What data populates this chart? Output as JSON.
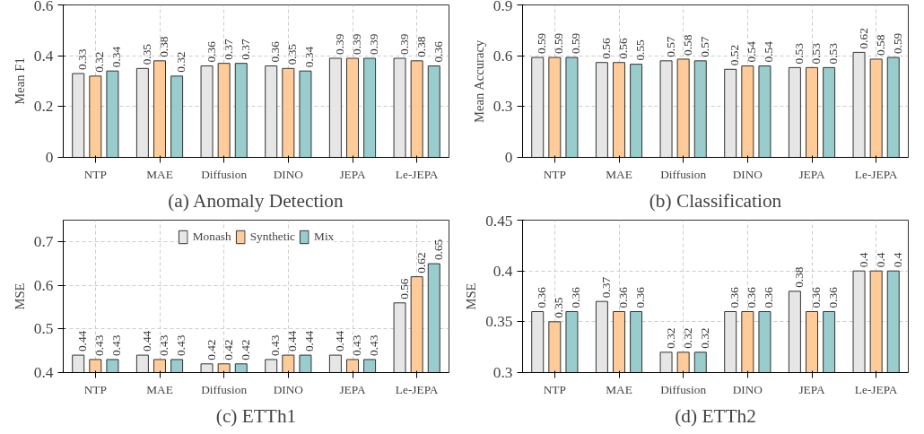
{
  "chart_data": [
    {
      "type": "bar",
      "title": "(a) Anomaly Detection",
      "ylabel": "Mean F1",
      "categories": [
        "NTP",
        "MAE",
        "Diffusion",
        "DINO",
        "JEPA",
        "Le-JEPA"
      ],
      "series": [
        {
          "color": "#e6e6e6",
          "values": [
            0.33,
            0.35,
            0.36,
            0.36,
            0.39,
            0.39
          ]
        },
        {
          "color": "#ffcc99",
          "values": [
            0.32,
            0.38,
            0.37,
            0.35,
            0.39,
            0.38
          ]
        },
        {
          "color": "#99cccc",
          "values": [
            0.34,
            0.32,
            0.37,
            0.34,
            0.39,
            0.36
          ]
        }
      ],
      "ylim": [
        0,
        0.6
      ],
      "yticks": [
        0,
        0.2,
        0.4,
        0.6
      ],
      "grid": true,
      "data_labels": true,
      "legend": false
    },
    {
      "type": "bar",
      "title": "(b) Classification",
      "ylabel": "Mean Accuracy",
      "categories": [
        "NTP",
        "MAE",
        "Diffusion",
        "DINO",
        "JEPA",
        "Le-JEPA"
      ],
      "series": [
        {
          "color": "#e6e6e6",
          "values": [
            0.59,
            0.56,
            0.57,
            0.52,
            0.53,
            0.62
          ]
        },
        {
          "color": "#ffcc99",
          "values": [
            0.59,
            0.56,
            0.58,
            0.54,
            0.53,
            0.58
          ]
        },
        {
          "color": "#99cccc",
          "values": [
            0.59,
            0.55,
            0.57,
            0.54,
            0.53,
            0.59
          ]
        }
      ],
      "ylim": [
        0,
        0.9
      ],
      "yticks": [
        0,
        0.3,
        0.6,
        0.9
      ],
      "grid": true,
      "data_labels": true,
      "legend": false
    },
    {
      "type": "bar",
      "title": "(c) ETTh1",
      "ylabel": "MSE",
      "categories": [
        "NTP",
        "MAE",
        "Diffusion",
        "DINO",
        "JEPA",
        "Le-JEPA"
      ],
      "series": [
        {
          "name": "Monash",
          "color": "#e6e6e6",
          "values": [
            0.44,
            0.44,
            0.42,
            0.43,
            0.44,
            0.56
          ]
        },
        {
          "name": "Synthetic",
          "color": "#ffcc99",
          "values": [
            0.43,
            0.43,
            0.42,
            0.44,
            0.43,
            0.62
          ]
        },
        {
          "name": "Mix",
          "color": "#99cccc",
          "values": [
            0.43,
            0.43,
            0.42,
            0.44,
            0.43,
            0.65
          ]
        }
      ],
      "ylim": [
        0.4,
        0.75
      ],
      "yticks": [
        0.4,
        0.5,
        0.6,
        0.7
      ],
      "grid": true,
      "data_labels": true,
      "legend": "top"
    },
    {
      "type": "bar",
      "title": "(d) ETTh2",
      "ylabel": "MSE",
      "categories": [
        "NTP",
        "MAE",
        "Diffusion",
        "DINO",
        "JEPA",
        "Le-JEPA"
      ],
      "series": [
        {
          "color": "#e6e6e6",
          "values": [
            0.36,
            0.37,
            0.32,
            0.36,
            0.38,
            0.4
          ]
        },
        {
          "color": "#ffcc99",
          "values": [
            0.35,
            0.36,
            0.32,
            0.36,
            0.36,
            0.4
          ]
        },
        {
          "color": "#99cccc",
          "values": [
            0.36,
            0.36,
            0.32,
            0.36,
            0.36,
            0.4
          ]
        }
      ],
      "ylim": [
        0.3,
        0.45
      ],
      "yticks": [
        0.3,
        0.35,
        0.4,
        0.45
      ],
      "grid": true,
      "data_labels": true,
      "legend": false
    }
  ]
}
